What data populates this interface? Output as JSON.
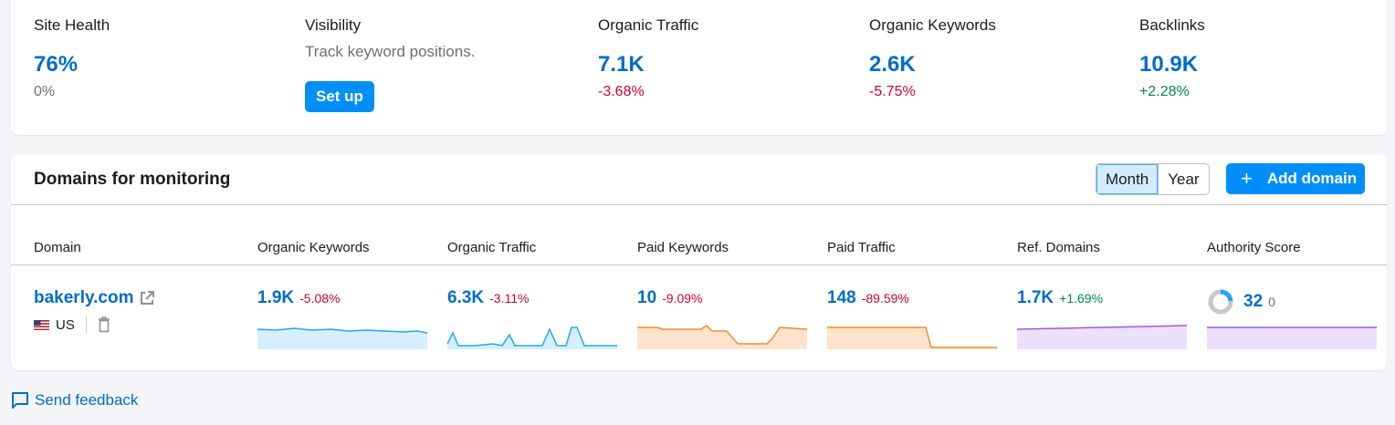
{
  "stats": [
    {
      "label": "Site Health",
      "value": "76%",
      "change": "0%",
      "tone": "muted"
    },
    {
      "label": "Visibility",
      "description": "Track keyword positions.",
      "button": "Set up"
    },
    {
      "label": "Organic Traffic",
      "value": "7.1K",
      "change": "-3.68%",
      "tone": "neg"
    },
    {
      "label": "Organic Keywords",
      "value": "2.6K",
      "change": "-5.75%",
      "tone": "neg"
    },
    {
      "label": "Backlinks",
      "value": "10.9K",
      "change": "+2.28%",
      "tone": "pos"
    }
  ],
  "domains": {
    "title": "Domains for monitoring",
    "period": {
      "month": "Month",
      "year": "Year",
      "selected": "Month"
    },
    "add_button": "Add domain",
    "columns": [
      "Domain",
      "Organic Keywords",
      "Organic Traffic",
      "Paid Keywords",
      "Paid Traffic",
      "Ref. Domains",
      "Authority Score"
    ],
    "row": {
      "domain": "bakerly.com",
      "country": "US",
      "organic_keywords": {
        "value": "1.9K",
        "change": "-5.08%"
      },
      "organic_traffic": {
        "value": "6.3K",
        "change": "-3.11%"
      },
      "paid_keywords": {
        "value": "10",
        "change": "-9.09%"
      },
      "paid_traffic": {
        "value": "148",
        "change": "-89.59%"
      },
      "ref_domains": {
        "value": "1.7K",
        "change": "+1.69%"
      },
      "authority_score": {
        "value": "32",
        "change": "0"
      }
    }
  },
  "feedback": "Send feedback",
  "colors": {
    "accent": "#006dca",
    "button": "#008ff8",
    "negative": "#d1002f",
    "positive": "#008557",
    "spark_blue": "#20a8f0",
    "spark_orange": "#f08c2f",
    "spark_purple": "#9a5ae8"
  }
}
